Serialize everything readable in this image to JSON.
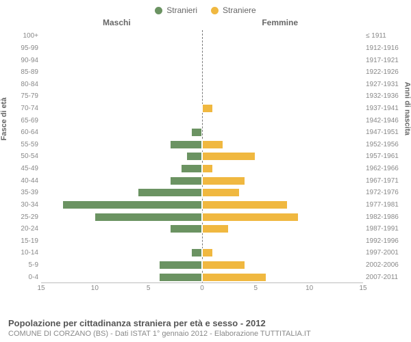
{
  "legend": {
    "male": {
      "label": "Stranieri",
      "color": "#6b9362"
    },
    "female": {
      "label": "Straniere",
      "color": "#f0b840"
    }
  },
  "headers": {
    "male": "Maschi",
    "female": "Femmine"
  },
  "axis_titles": {
    "left": "Fasce di età",
    "right": "Anni di nascita"
  },
  "pyramid": {
    "type": "population-pyramid",
    "x_max": 15,
    "x_ticks": [
      15,
      10,
      5,
      0,
      5,
      10,
      15
    ],
    "bar_border_color": "#ffffff",
    "grid_color": "#eeeeee",
    "male_color": "#6b9362",
    "female_color": "#f0b840",
    "center_line_color": "#777777",
    "rows": [
      {
        "age": "100+",
        "birth": "≤ 1911",
        "m": 0,
        "f": 0
      },
      {
        "age": "95-99",
        "birth": "1912-1916",
        "m": 0,
        "f": 0
      },
      {
        "age": "90-94",
        "birth": "1917-1921",
        "m": 0,
        "f": 0
      },
      {
        "age": "85-89",
        "birth": "1922-1926",
        "m": 0,
        "f": 0
      },
      {
        "age": "80-84",
        "birth": "1927-1931",
        "m": 0,
        "f": 0
      },
      {
        "age": "75-79",
        "birth": "1932-1936",
        "m": 0,
        "f": 0
      },
      {
        "age": "70-74",
        "birth": "1937-1941",
        "m": 0,
        "f": 1
      },
      {
        "age": "65-69",
        "birth": "1942-1946",
        "m": 0,
        "f": 0
      },
      {
        "age": "60-64",
        "birth": "1947-1951",
        "m": 1,
        "f": 0
      },
      {
        "age": "55-59",
        "birth": "1952-1956",
        "m": 3,
        "f": 2
      },
      {
        "age": "50-54",
        "birth": "1957-1961",
        "m": 1.5,
        "f": 5
      },
      {
        "age": "45-49",
        "birth": "1962-1966",
        "m": 2,
        "f": 1
      },
      {
        "age": "40-44",
        "birth": "1967-1971",
        "m": 3,
        "f": 4
      },
      {
        "age": "35-39",
        "birth": "1972-1976",
        "m": 6,
        "f": 3.5
      },
      {
        "age": "30-34",
        "birth": "1977-1981",
        "m": 13,
        "f": 8
      },
      {
        "age": "25-29",
        "birth": "1982-1986",
        "m": 10,
        "f": 9
      },
      {
        "age": "20-24",
        "birth": "1987-1991",
        "m": 3,
        "f": 2.5
      },
      {
        "age": "15-19",
        "birth": "1992-1996",
        "m": 0,
        "f": 0
      },
      {
        "age": "10-14",
        "birth": "1997-2001",
        "m": 1,
        "f": 1
      },
      {
        "age": "5-9",
        "birth": "2002-2006",
        "m": 4,
        "f": 4
      },
      {
        "age": "0-4",
        "birth": "2007-2011",
        "m": 4,
        "f": 6
      }
    ]
  },
  "footer": {
    "title": "Popolazione per cittadinanza straniera per età e sesso - 2012",
    "subtitle": "COMUNE DI CORZANO (BS) - Dati ISTAT 1° gennaio 2012 - Elaborazione TUTTITALIA.IT"
  }
}
